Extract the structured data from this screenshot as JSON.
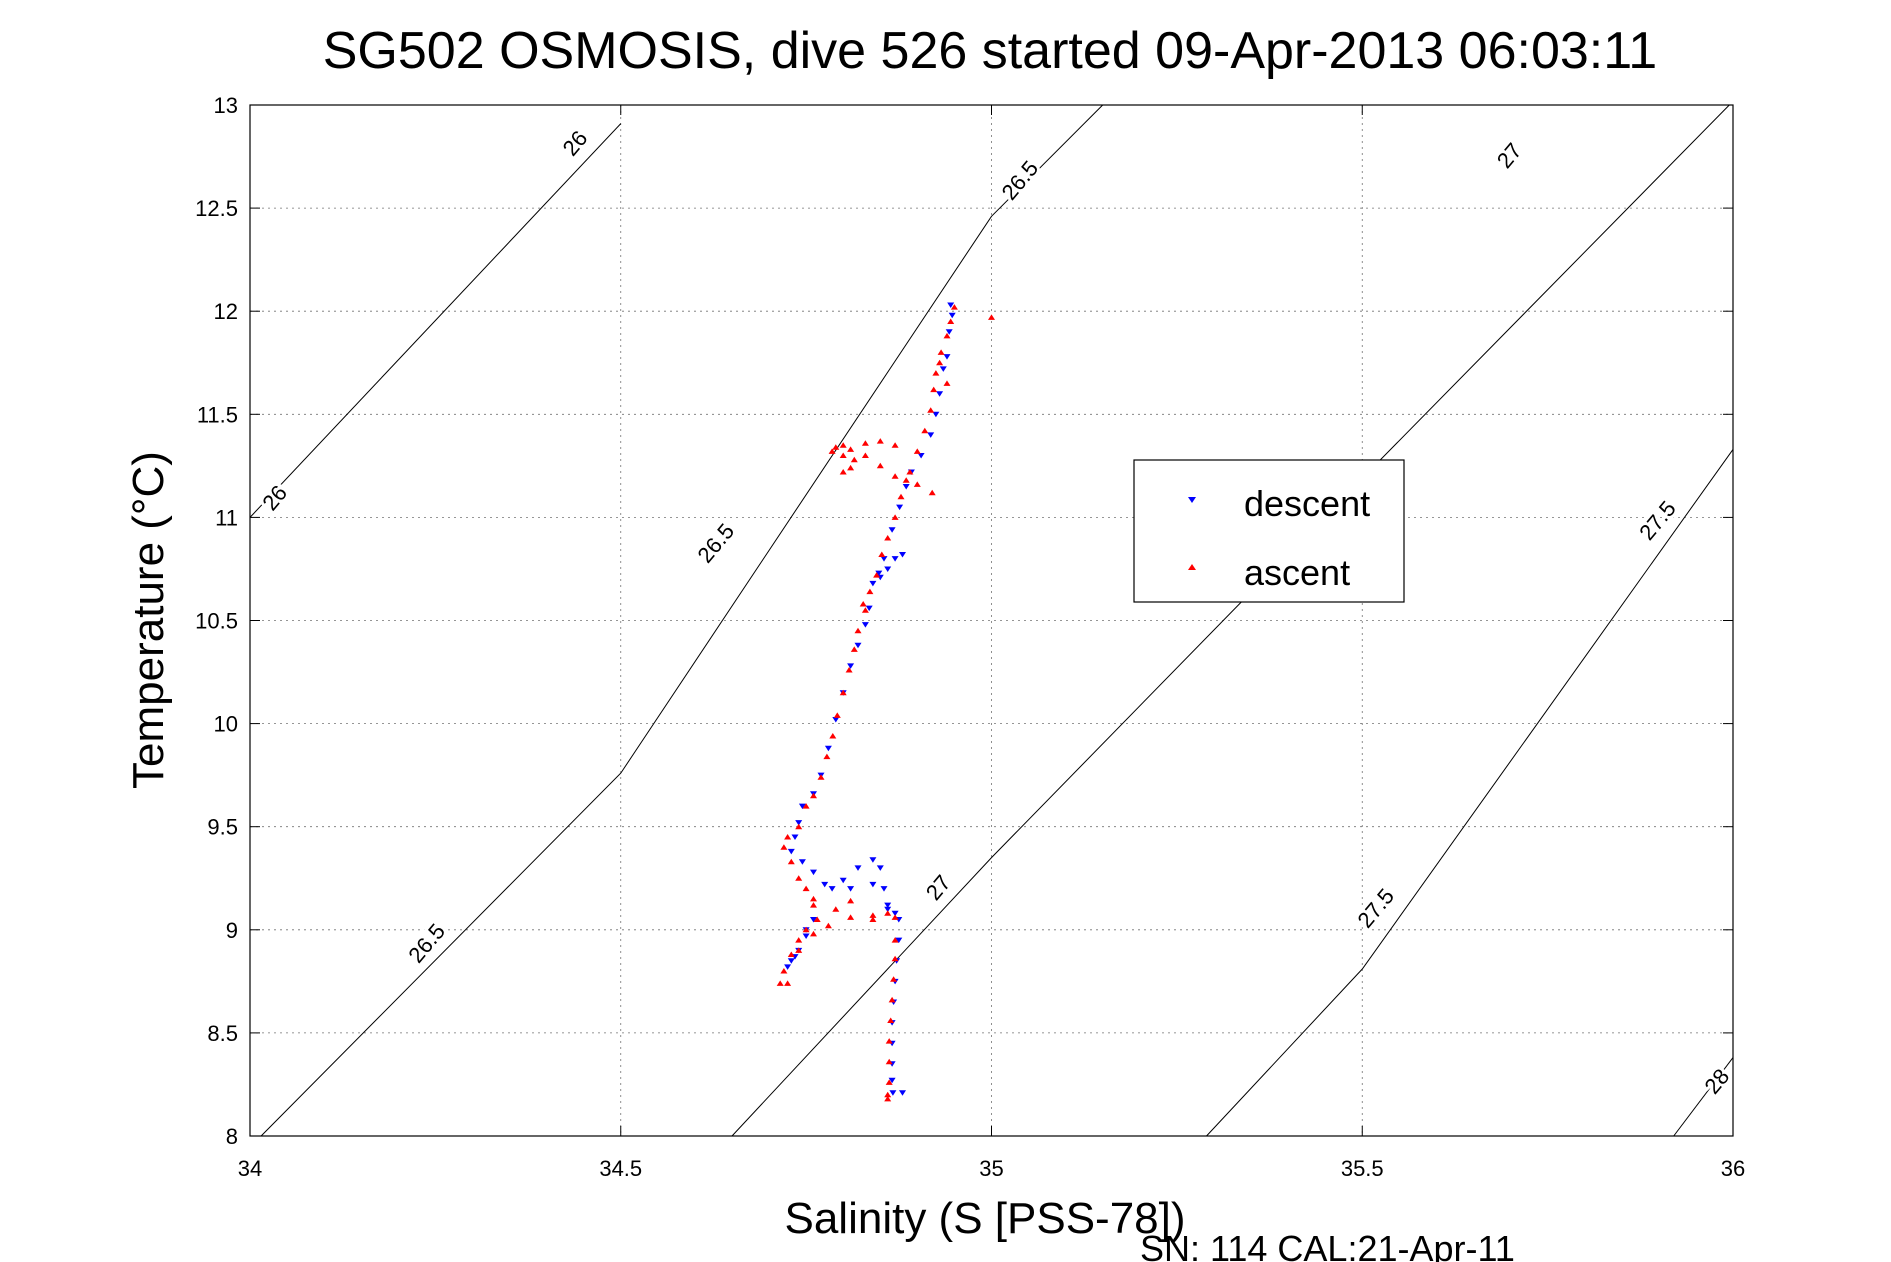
{
  "chart_data": {
    "type": "scatter",
    "title": "SG502 OSMOSIS, dive 526 started 09-Apr-2013 06:03:11",
    "xlabel": "Salinity (S [PSS-78])",
    "ylabel": "Temperature (°C)",
    "footer": "SN: 114  CAL:21-Apr-11",
    "xlim": [
      34,
      36
    ],
    "ylim": [
      8,
      13
    ],
    "grid": true,
    "legend_position": "right-center",
    "x_ticks": [
      "34",
      "34.5",
      "35",
      "35.5",
      "36"
    ],
    "y_ticks": [
      "8",
      "8.5",
      "9",
      "9.5",
      "10",
      "10.5",
      "11",
      "11.5",
      "12",
      "12.5",
      "13"
    ],
    "isopycnals": [
      {
        "label": "26",
        "points": [
          [
            34.0,
            11.0
          ],
          [
            34.5,
            12.91
          ]
        ],
        "label_positions": [
          [
            34.035,
            11.09
          ],
          [
            34.44,
            12.81
          ]
        ]
      },
      {
        "label": "26.5",
        "points": [
          [
            34.015,
            8.0
          ],
          [
            34.5,
            9.76
          ],
          [
            35.0,
            12.46
          ],
          [
            35.15,
            13.0
          ]
        ],
        "label_positions": [
          [
            34.24,
            8.93
          ],
          [
            34.63,
            10.87
          ],
          [
            35.04,
            12.63
          ]
        ]
      },
      {
        "label": "27",
        "points": [
          [
            34.65,
            8.0
          ],
          [
            35.0,
            9.35
          ],
          [
            35.5,
            11.19
          ],
          [
            35.995,
            13.0
          ]
        ],
        "label_positions": [
          [
            34.93,
            9.2
          ],
          [
            35.7,
            12.75
          ]
        ]
      },
      {
        "label": "27.5",
        "points": [
          [
            35.29,
            8.0
          ],
          [
            35.5,
            8.81
          ],
          [
            36.0,
            11.33
          ]
        ],
        "label_positions": [
          [
            35.52,
            9.1
          ],
          [
            35.9,
            10.98
          ]
        ]
      },
      {
        "label": "28",
        "points": [
          [
            35.92,
            8.0
          ],
          [
            36.0,
            8.38
          ]
        ],
        "label_positions": [
          [
            35.98,
            8.26
          ]
        ]
      }
    ],
    "series": [
      {
        "name": "descent",
        "color": "#0000ff",
        "marker": "triangle-down",
        "points": [
          [
            34.945,
            12.03
          ],
          [
            34.947,
            11.98
          ],
          [
            34.943,
            11.9
          ],
          [
            34.94,
            11.78
          ],
          [
            34.935,
            11.72
          ],
          [
            34.93,
            11.6
          ],
          [
            34.925,
            11.5
          ],
          [
            34.918,
            11.4
          ],
          [
            34.905,
            11.3
          ],
          [
            34.892,
            11.22
          ],
          [
            34.885,
            11.15
          ],
          [
            34.876,
            11.05
          ],
          [
            34.866,
            10.94
          ],
          [
            34.855,
            10.8
          ],
          [
            34.848,
            10.73
          ],
          [
            34.84,
            10.68
          ],
          [
            34.85,
            10.71
          ],
          [
            34.86,
            10.75
          ],
          [
            34.87,
            10.8
          ],
          [
            34.88,
            10.82
          ],
          [
            34.835,
            10.56
          ],
          [
            34.83,
            10.48
          ],
          [
            34.82,
            10.38
          ],
          [
            34.81,
            10.28
          ],
          [
            34.8,
            10.15
          ],
          [
            34.79,
            10.02
          ],
          [
            34.78,
            9.88
          ],
          [
            34.77,
            9.75
          ],
          [
            34.76,
            9.66
          ],
          [
            34.745,
            9.6
          ],
          [
            34.74,
            9.52
          ],
          [
            34.735,
            9.45
          ],
          [
            34.73,
            9.38
          ],
          [
            34.745,
            9.33
          ],
          [
            34.76,
            9.28
          ],
          [
            34.775,
            9.22
          ],
          [
            34.785,
            9.2
          ],
          [
            34.8,
            9.24
          ],
          [
            34.82,
            9.3
          ],
          [
            34.84,
            9.34
          ],
          [
            34.85,
            9.3
          ],
          [
            34.855,
            9.2
          ],
          [
            34.86,
            9.12
          ],
          [
            34.87,
            9.08
          ],
          [
            34.875,
            9.05
          ],
          [
            34.875,
            8.95
          ],
          [
            34.872,
            8.85
          ],
          [
            34.87,
            8.75
          ],
          [
            34.868,
            8.65
          ],
          [
            34.866,
            8.55
          ],
          [
            34.866,
            8.45
          ],
          [
            34.866,
            8.35
          ],
          [
            34.866,
            8.27
          ],
          [
            34.867,
            8.21
          ],
          [
            34.88,
            8.21
          ],
          [
            34.86,
            9.1
          ],
          [
            34.84,
            9.22
          ],
          [
            34.81,
            9.2
          ],
          [
            34.76,
            9.05
          ],
          [
            34.75,
            8.97
          ],
          [
            34.74,
            8.9
          ],
          [
            34.73,
            8.85
          ],
          [
            34.725,
            8.82
          ],
          [
            34.735,
            8.87
          ],
          [
            34.75,
            9.0
          ]
        ]
      },
      {
        "name": "ascent",
        "color": "#ff0000",
        "marker": "triangle-up",
        "points": [
          [
            34.95,
            12.02
          ],
          [
            34.945,
            11.95
          ],
          [
            34.94,
            11.88
          ],
          [
            34.932,
            11.8
          ],
          [
            34.925,
            11.7
          ],
          [
            34.93,
            11.75
          ],
          [
            34.922,
            11.62
          ],
          [
            34.918,
            11.52
          ],
          [
            34.91,
            11.42
          ],
          [
            34.9,
            11.32
          ],
          [
            34.89,
            11.22
          ],
          [
            34.885,
            11.18
          ],
          [
            34.878,
            11.1
          ],
          [
            34.87,
            11.0
          ],
          [
            34.86,
            10.9
          ],
          [
            34.852,
            10.82
          ],
          [
            34.845,
            10.72
          ],
          [
            34.836,
            10.64
          ],
          [
            34.83,
            10.55
          ],
          [
            34.827,
            10.58
          ],
          [
            34.82,
            10.45
          ],
          [
            34.815,
            10.36
          ],
          [
            34.808,
            10.26
          ],
          [
            34.8,
            10.15
          ],
          [
            34.792,
            10.04
          ],
          [
            34.786,
            9.94
          ],
          [
            34.778,
            9.84
          ],
          [
            34.77,
            9.74
          ],
          [
            34.76,
            9.65
          ],
          [
            34.75,
            9.6
          ],
          [
            34.74,
            9.5
          ],
          [
            34.725,
            9.45
          ],
          [
            34.72,
            9.4
          ],
          [
            34.73,
            9.33
          ],
          [
            34.74,
            9.25
          ],
          [
            34.75,
            9.2
          ],
          [
            34.76,
            9.12
          ],
          [
            34.765,
            9.05
          ],
          [
            34.75,
            9.0
          ],
          [
            34.74,
            8.95
          ],
          [
            34.73,
            8.88
          ],
          [
            34.72,
            8.8
          ],
          [
            34.715,
            8.74
          ],
          [
            34.725,
            8.74
          ],
          [
            34.74,
            8.9
          ],
          [
            34.76,
            8.98
          ],
          [
            34.78,
            9.02
          ],
          [
            34.81,
            9.06
          ],
          [
            34.84,
            9.07
          ],
          [
            34.86,
            9.08
          ],
          [
            34.87,
            9.06
          ],
          [
            34.87,
            8.95
          ],
          [
            34.87,
            8.86
          ],
          [
            34.868,
            8.76
          ],
          [
            34.866,
            8.66
          ],
          [
            34.864,
            8.56
          ],
          [
            34.862,
            8.46
          ],
          [
            34.862,
            8.36
          ],
          [
            34.862,
            8.26
          ],
          [
            34.86,
            8.2
          ],
          [
            34.86,
            8.18
          ],
          [
            34.92,
            11.12
          ],
          [
            34.9,
            11.16
          ],
          [
            34.87,
            11.2
          ],
          [
            34.85,
            11.25
          ],
          [
            34.83,
            11.3
          ],
          [
            34.81,
            11.33
          ],
          [
            34.8,
            11.35
          ],
          [
            34.79,
            11.34
          ],
          [
            34.8,
            11.3
          ],
          [
            34.815,
            11.28
          ],
          [
            34.83,
            11.36
          ],
          [
            34.85,
            11.37
          ],
          [
            34.87,
            11.35
          ],
          [
            34.785,
            11.32
          ],
          [
            34.8,
            11.22
          ],
          [
            34.81,
            11.24
          ],
          [
            35.0,
            11.97
          ],
          [
            34.94,
            11.65
          ],
          [
            34.76,
            9.15
          ],
          [
            34.79,
            9.1
          ],
          [
            34.81,
            9.14
          ],
          [
            34.84,
            9.05
          ]
        ]
      }
    ]
  }
}
